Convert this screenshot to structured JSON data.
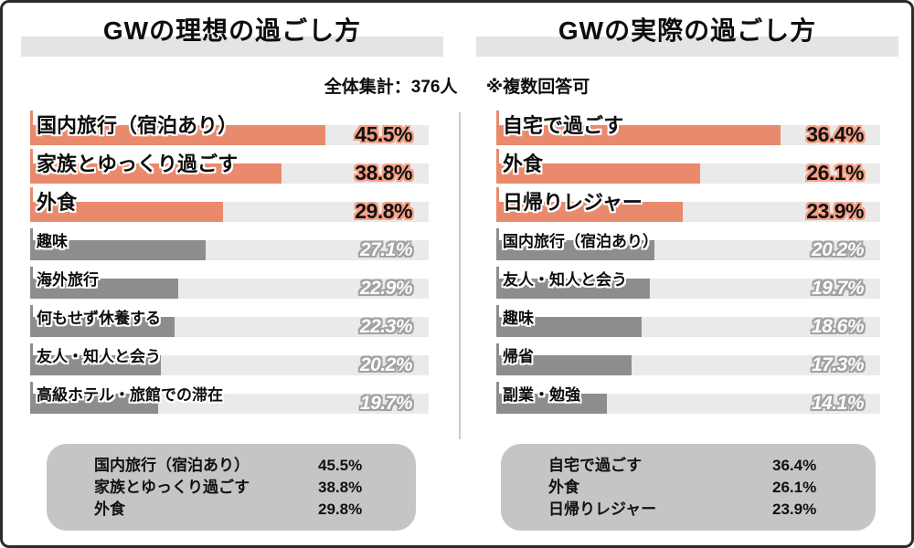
{
  "page": {
    "subtitle_total": "全体集計：376人",
    "subtitle_note": "※複数回答可"
  },
  "colors": {
    "accent": "#ea8a6d",
    "accent_glow": "#f4a187",
    "bar_gray": "#8d8d8d",
    "track": "#eaeaea",
    "summary_bg": "#c5c5c5"
  },
  "chart_data": [
    {
      "type": "bar",
      "orientation": "horizontal",
      "title": "GWの理想の過ごし方",
      "unit": "%",
      "highlight_count": 3,
      "categories": [
        "国内旅行（宿泊あり）",
        "家族とゆっくり過ごす",
        "外食",
        "趣味",
        "海外旅行",
        "何もせず休養する",
        "友人・知人と会う",
        "高級ホテル・旅館での滞在"
      ],
      "values": [
        45.5,
        38.8,
        29.8,
        27.1,
        22.9,
        22.3,
        20.2,
        19.7
      ],
      "value_labels": [
        "45.5%",
        "38.8%",
        "29.8%",
        "27.1%",
        "22.9%",
        "22.3%",
        "20.2%",
        "19.7%"
      ]
    },
    {
      "type": "bar",
      "orientation": "horizontal",
      "title": "GWの実際の過ごし方",
      "unit": "%",
      "highlight_count": 3,
      "categories": [
        "自宅で過ごす",
        "外食",
        "日帰りレジャー",
        "国内旅行（宿泊あり）",
        "友人・知人と会う",
        "趣味",
        "帰省",
        "副業・勉強"
      ],
      "values": [
        36.4,
        26.1,
        23.9,
        20.2,
        19.7,
        18.6,
        17.3,
        14.1
      ],
      "value_labels": [
        "36.4%",
        "26.1%",
        "23.9%",
        "20.2%",
        "19.7%",
        "18.6%",
        "17.3%",
        "14.1%"
      ]
    }
  ]
}
